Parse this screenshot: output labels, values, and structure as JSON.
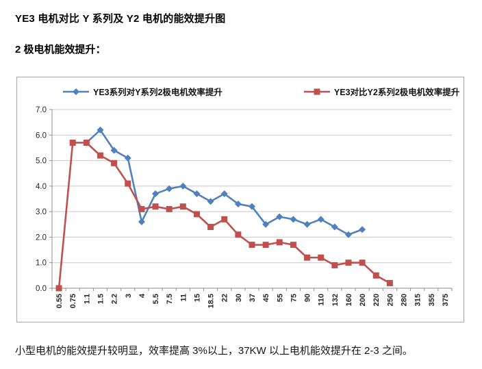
{
  "page": {
    "title": "YE3 电机对比 Y 系列及 Y2 电机的能效提升图",
    "subtitle": "2 极电机能效提升：",
    "footnote": "小型电机的能效提升较明显，效率提高 3%以上，37KW 以上电机能效提升在 2-3 之间。"
  },
  "chart_data": {
    "type": "line",
    "title": "",
    "xlabel": "",
    "ylabel": "",
    "ylim": [
      0,
      7
    ],
    "ytick_step": 1,
    "grid": true,
    "legend_position": "top",
    "axis_color": "#8e8e8e",
    "gridline_color": "#c9c9c9",
    "categories": [
      "0.55",
      "0.75",
      "1.1",
      "1.5",
      "2.2",
      "3",
      "4",
      "5.5",
      "7.5",
      "11",
      "15",
      "18.5",
      "22",
      "30",
      "37",
      "45",
      "55",
      "75",
      "90",
      "110",
      "132",
      "160",
      "200",
      "220",
      "250",
      "280",
      "315",
      "355",
      "375"
    ],
    "series": [
      {
        "name": "YE3系列对Y系列2极电机效率提升",
        "color": "#4f81bd",
        "marker": "diamond",
        "values": [
          null,
          null,
          5.7,
          6.2,
          5.4,
          5.1,
          2.6,
          3.7,
          3.9,
          4.0,
          3.7,
          3.4,
          3.7,
          3.3,
          3.2,
          2.5,
          2.8,
          2.7,
          2.5,
          2.7,
          2.4,
          2.1,
          2.3,
          null,
          null,
          null,
          null,
          null,
          null
        ]
      },
      {
        "name": "YE3对比Y2系列2极电机效率提升",
        "color": "#c0504d",
        "marker": "square",
        "values": [
          0.0,
          5.7,
          5.7,
          5.2,
          4.9,
          4.1,
          3.1,
          3.2,
          3.1,
          3.2,
          2.9,
          2.4,
          2.7,
          2.1,
          1.7,
          1.7,
          1.8,
          1.7,
          1.2,
          1.2,
          0.9,
          1.0,
          1.0,
          0.5,
          0.2,
          null,
          null,
          null,
          null
        ]
      }
    ]
  }
}
